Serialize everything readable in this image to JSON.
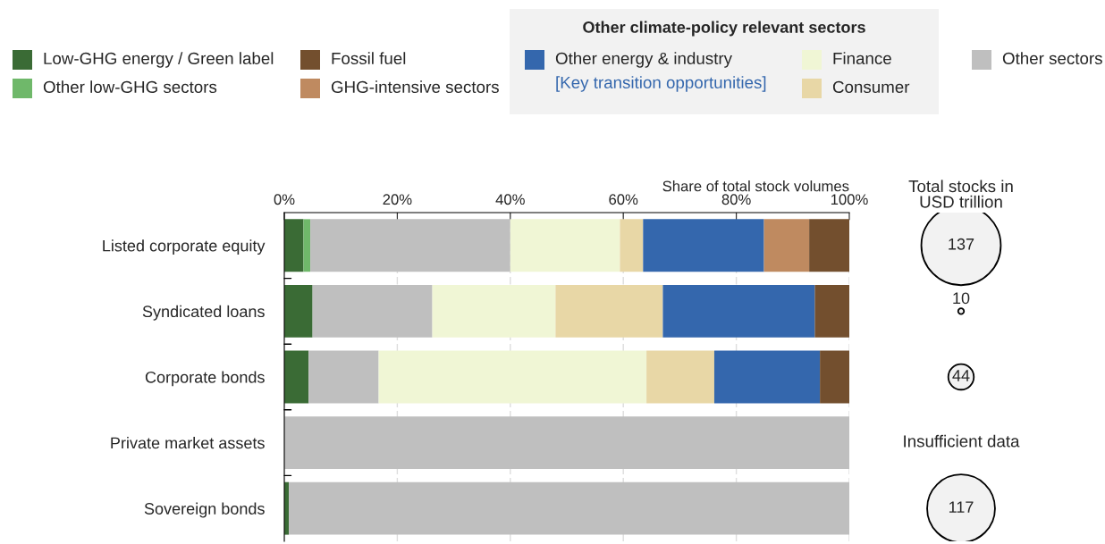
{
  "chart_data": [
    {
      "type": "bar",
      "orientation": "horizontal",
      "stacked": true,
      "legend": "top",
      "legend_title": "Other climate-policy relevant sectors",
      "xlabel": "Share of total stock volumes",
      "categories": [
        "Listed corporate equity",
        "Syndicated loans",
        "Corporate bonds",
        "Private market assets",
        "Sovereign bonds"
      ],
      "series": [
        {
          "name": "Low-GHG energy / Green label",
          "color": "#3a6b35",
          "values": [
            3.4,
            5.0,
            4.3,
            0,
            0.8
          ]
        },
        {
          "name": "Other low-GHG sectors",
          "color": "#6fb86a",
          "values": [
            1.2,
            0,
            0,
            0,
            0
          ]
        },
        {
          "name": "Other sectors",
          "color": "#bfbfbf",
          "values": [
            35.4,
            21.2,
            12.4,
            100,
            99.2
          ]
        },
        {
          "name": "Finance",
          "color": "#f0f6d5",
          "values": [
            19.4,
            21.8,
            47.4,
            0,
            0
          ]
        },
        {
          "name": "Consumer",
          "color": "#e8d7a6",
          "values": [
            4.1,
            19.0,
            12.0,
            0,
            0
          ]
        },
        {
          "name": "Other energy & industry",
          "color": "#3467ad",
          "values": [
            21.4,
            26.9,
            18.7,
            0,
            0
          ]
        },
        {
          "name": "GHG-intensive sectors",
          "color": "#bf8a60",
          "values": [
            8.0,
            0,
            0,
            0,
            0
          ]
        },
        {
          "name": "Fossil fuel",
          "color": "#734f2e",
          "values": [
            7.1,
            6.1,
            5.2,
            0,
            0
          ]
        }
      ],
      "annotations": [
        "[Key transition opportunities]"
      ],
      "xlim": [
        0,
        100
      ],
      "xticks": [
        {
          "value": 0,
          "label": "0%"
        },
        {
          "value": 20,
          "label": "20%"
        },
        {
          "value": 40,
          "label": "40%"
        },
        {
          "value": 60,
          "label": "60%"
        },
        {
          "value": 80,
          "label": "80%"
        },
        {
          "value": 100,
          "label": "100%"
        }
      ],
      "grid": "x",
      "tick_labels": "xy"
    },
    {
      "type": "other",
      "title": "Total stocks in USD trillion",
      "values": [
        137,
        10,
        44,
        null,
        117
      ],
      "data_labels": true,
      "annotations": [
        "Insufficient data"
      ]
    }
  ]
}
